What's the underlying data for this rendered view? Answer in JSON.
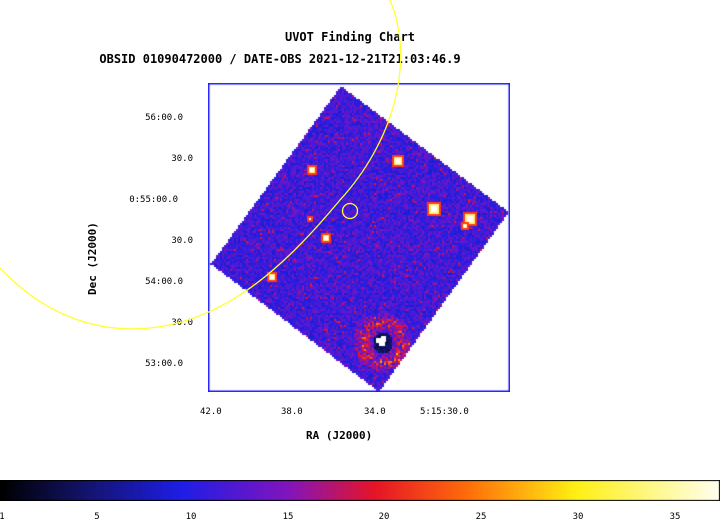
{
  "chart_title": "UVOT Finding Chart",
  "chart_subtitle": "OBSID 01090472000 / DATE-OBS 2021-12-21T21:03:46.9",
  "axes": {
    "xlabel": "RA (J2000)",
    "ylabel": "Dec (J2000)",
    "xticks": [
      "42.0",
      "38.0",
      "34.0",
      "5:15:30.0"
    ],
    "yticks": [
      "56:00.0",
      "30.0",
      "0:55:00.0",
      "30.0",
      "54:00.0",
      "30.0",
      "53:00.0"
    ]
  },
  "colorbar": {
    "ticks": [
      "1",
      "5",
      "10",
      "15",
      "20",
      "25",
      "30",
      "35"
    ]
  },
  "colors": {
    "image_frame": "#1a1aff",
    "overlay_circle": "#ffff33",
    "background": "#000000"
  }
}
